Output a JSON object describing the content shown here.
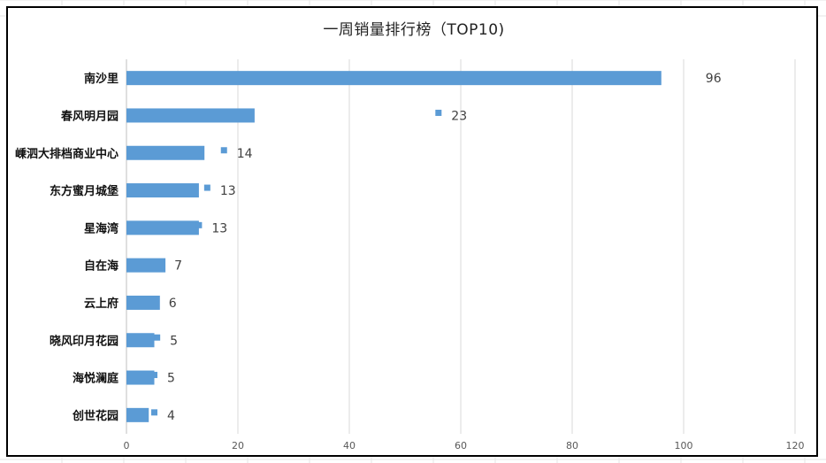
{
  "chart_data": {
    "type": "bar",
    "orientation": "horizontal",
    "title": "一周销量排行榜（TOP10)",
    "categories": [
      "南沙里",
      "春风明月园",
      "嵊泗大排档商业中心",
      "东方蜜月城堡",
      "星海湾",
      "自在海",
      "云上府",
      "晓风印月花园",
      "海悦澜庭",
      "创世花园"
    ],
    "series": [
      {
        "values": [
          96,
          23,
          14,
          13,
          13,
          7,
          6,
          5,
          5,
          4
        ],
        "color": "#5b9bd5"
      },
      {
        "values": [
          null,
          56,
          17.5,
          14.5,
          13,
          null,
          null,
          5.5,
          5,
          5
        ],
        "color": "#5b9bd5",
        "marker": "square"
      }
    ],
    "data_labels": [
      "96",
      "23",
      "14",
      "13",
      "13",
      "7",
      "6",
      "5",
      "5",
      "4"
    ],
    "x_ticks": [
      "0",
      "20",
      "40",
      "60",
      "80",
      "100",
      "120"
    ],
    "xlim": [
      0,
      120
    ],
    "grid": true,
    "legend": "none"
  }
}
